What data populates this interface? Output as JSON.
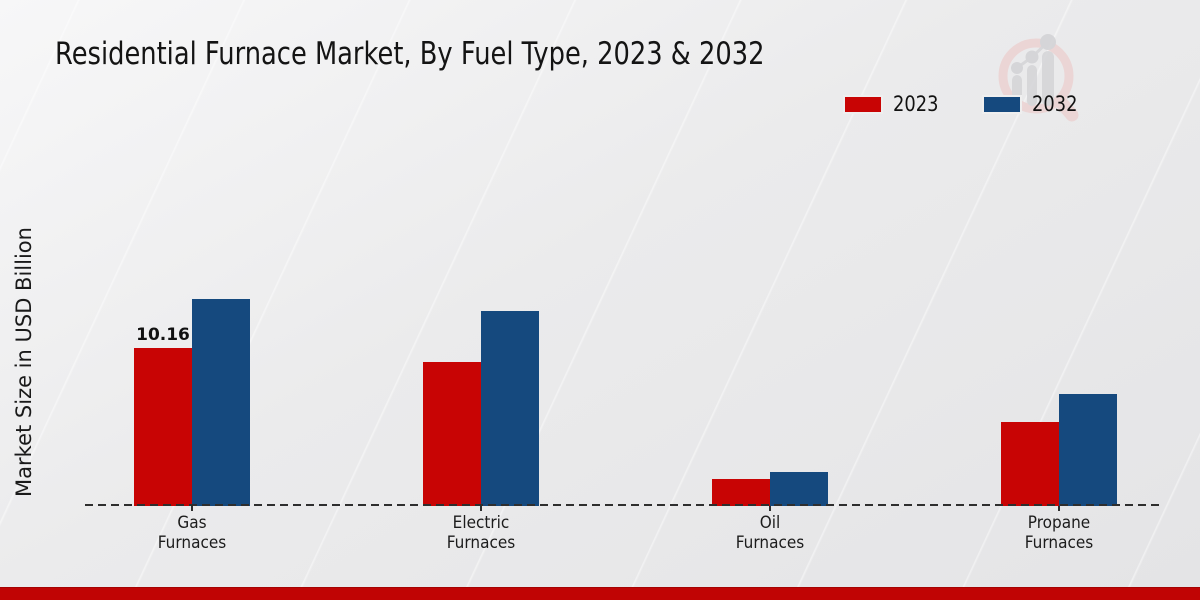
{
  "page": {
    "footer_bar_color": "#c00404",
    "background_color": "#ebebec"
  },
  "chart_data": {
    "type": "bar",
    "title": "Residential Furnace Market, By Fuel Type, 2023 & 2032",
    "xlabel": "",
    "ylabel": "Market Size in USD Billion",
    "categories": [
      "Gas Furnaces",
      "Electric Furnaces",
      "Oil Furnaces",
      "Propane Furnaces"
    ],
    "series": [
      {
        "name": "2023",
        "color": "#c80404",
        "values": [
          10.16,
          9.2,
          1.7,
          5.4
        ]
      },
      {
        "name": "2032",
        "color": "#15497e",
        "values": [
          13.3,
          12.5,
          2.2,
          7.2
        ]
      }
    ],
    "value_labels": [
      {
        "series": "2023",
        "category": "Gas Furnaces",
        "text": "10.16"
      }
    ],
    "ylim": [
      0,
      14.5
    ],
    "grid": false,
    "legend_position": "top-right",
    "baseline_style": "dashed"
  }
}
